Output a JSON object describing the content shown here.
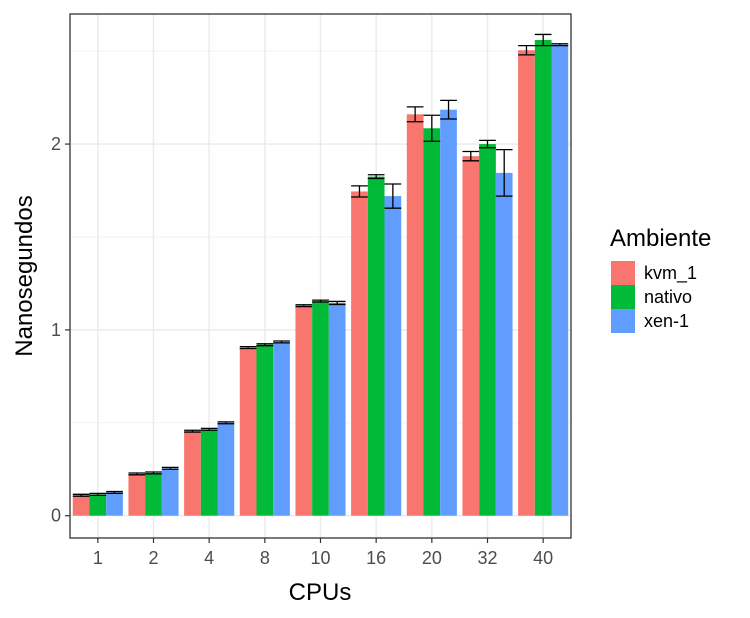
{
  "chart_data": {
    "type": "bar",
    "xlabel": "CPUs",
    "ylabel": "Nanosegundos",
    "categories": [
      "1",
      "2",
      "4",
      "8",
      "10",
      "16",
      "20",
      "32",
      "40"
    ],
    "ylim": [
      -0.12,
      2.7
    ],
    "yticks": [
      0,
      1,
      2
    ],
    "grid": true,
    "legend": {
      "title": "Ambiente",
      "position": "right"
    },
    "series": [
      {
        "name": "kvm_1",
        "color": "#F8766D",
        "values": [
          0.11,
          0.225,
          0.455,
          0.905,
          1.13,
          1.745,
          2.16,
          1.935,
          2.505
        ],
        "errors": [
          0.005,
          0.005,
          0.005,
          0.005,
          0.005,
          0.03,
          0.04,
          0.025,
          0.025
        ]
      },
      {
        "name": "nativo",
        "color": "#00BA38",
        "values": [
          0.115,
          0.23,
          0.465,
          0.92,
          1.155,
          1.825,
          2.085,
          2.0,
          2.56
        ],
        "errors": [
          0.005,
          0.005,
          0.005,
          0.005,
          0.005,
          0.01,
          0.07,
          0.02,
          0.03
        ]
      },
      {
        "name": "xen-1",
        "color": "#619CFF",
        "values": [
          0.125,
          0.255,
          0.5,
          0.935,
          1.145,
          1.72,
          2.185,
          1.845,
          2.535
        ],
        "errors": [
          0.005,
          0.005,
          0.005,
          0.005,
          0.008,
          0.065,
          0.05,
          0.125,
          0.005
        ]
      }
    ]
  }
}
